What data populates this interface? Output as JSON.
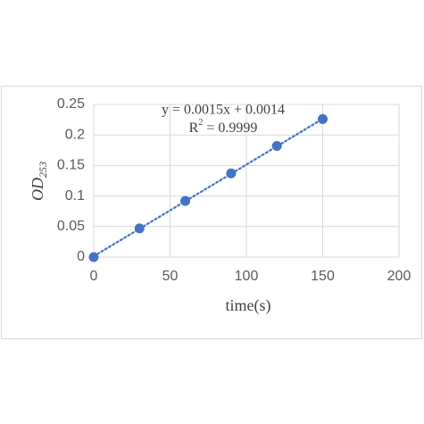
{
  "chart_data": {
    "type": "scatter",
    "x": [
      0,
      30,
      60,
      90,
      120,
      150
    ],
    "series": [
      {
        "color": "#4472c4",
        "values": [
          0,
          0.047,
          0.092,
          0.137,
          0.182,
          0.226
        ]
      }
    ],
    "xlim": [
      0,
      200
    ],
    "xticks": [
      0,
      50,
      100,
      150,
      200
    ],
    "ylim": [
      0,
      0.25
    ],
    "yticks": [
      0,
      0.05,
      0.1,
      0.15,
      0.2,
      0.25
    ],
    "grid": true,
    "xlabel": "time(s)",
    "ylabel": "OD",
    "ylabel_sub": "253",
    "trendline": {
      "slope": 0.0015,
      "intercept": 0.0014,
      "equation": "y = 0.0015x + 0.0014",
      "r2_prefix": "R",
      "r2_sup": "2",
      "r2_text": " = 0.9999"
    }
  }
}
